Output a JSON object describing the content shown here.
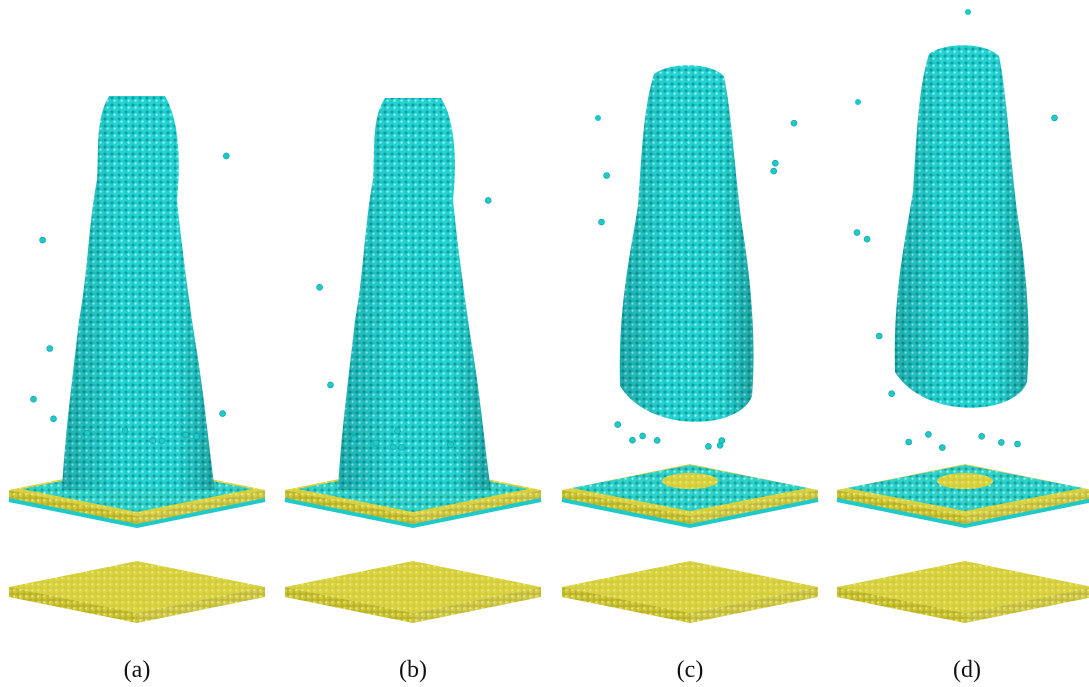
{
  "figure": {
    "panels": [
      {
        "label": "(a)"
      },
      {
        "label": "(b)"
      },
      {
        "label": "(c)"
      },
      {
        "label": "(d)"
      }
    ],
    "colors": {
      "atoms_cyan": "#1ec9c9",
      "atoms_cyan_dark": "#0e9c9c",
      "atoms_cyan_light": "#7fefef",
      "substrate_yellow": "#d6cf3a",
      "substrate_yellow_dark": "#a9a21e",
      "substrate_yellow_light": "#eee874",
      "background": "#ffffff"
    }
  }
}
